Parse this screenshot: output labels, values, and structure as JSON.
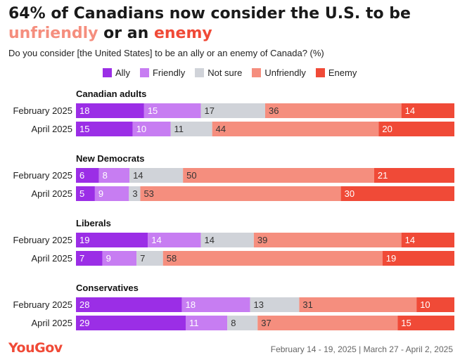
{
  "title": {
    "line1": "64% of Canadians now consider the U.S. to be",
    "highlight1": "unfriendly",
    "connector": " or an ",
    "highlight2": "enemy"
  },
  "subtitle": "Do you consider [the United States] to be an ally or an enemy of Canada? (%)",
  "footer": {
    "logo": "YouGov",
    "source": "February 14 - 19, 2025 | March 27 - April 2, 2025"
  },
  "colors": {
    "Ally": "#9b2ee6",
    "Friendly": "#c77df2",
    "Not sure": "#d0d3d9",
    "Unfriendly": "#f58e7e",
    "Enemy": "#f04a37"
  },
  "chart_data": {
    "type": "bar",
    "orientation": "horizontal",
    "stacked": true,
    "legend": [
      "Ally",
      "Friendly",
      "Not sure",
      "Unfriendly",
      "Enemy"
    ],
    "legend_position": "top",
    "groups": [
      {
        "name": "Canadian adults",
        "rows": [
          {
            "label": "February 2025",
            "values": [
              18,
              15,
              17,
              36,
              14
            ]
          },
          {
            "label": "April 2025",
            "values": [
              15,
              10,
              11,
              44,
              20
            ]
          }
        ]
      },
      {
        "name": "New Democrats",
        "rows": [
          {
            "label": "February 2025",
            "values": [
              6,
              8,
              14,
              50,
              21
            ]
          },
          {
            "label": "April 2025",
            "values": [
              5,
              9,
              3,
              53,
              30
            ]
          }
        ]
      },
      {
        "name": "Liberals",
        "rows": [
          {
            "label": "February 2025",
            "values": [
              19,
              14,
              14,
              39,
              14
            ]
          },
          {
            "label": "April 2025",
            "values": [
              7,
              9,
              7,
              58,
              19
            ]
          }
        ]
      },
      {
        "name": "Conservatives",
        "rows": [
          {
            "label": "February 2025",
            "values": [
              28,
              18,
              13,
              31,
              10
            ]
          },
          {
            "label": "April 2025",
            "values": [
              29,
              11,
              8,
              37,
              15
            ]
          }
        ]
      }
    ],
    "hidden_labels": [
      [],
      [],
      [],
      []
    ],
    "label_visibility_note": ""
  }
}
